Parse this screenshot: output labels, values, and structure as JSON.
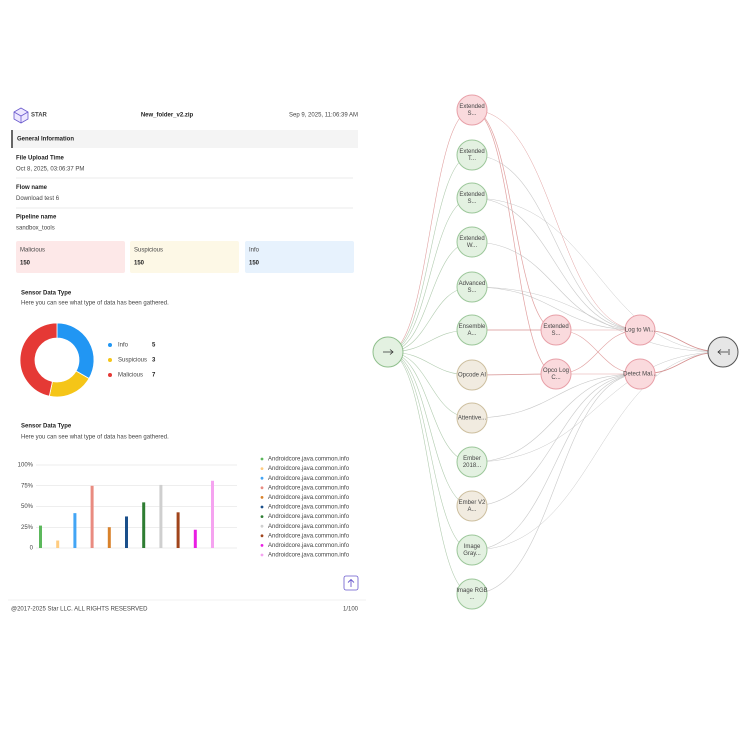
{
  "header": {
    "logo": "STAR",
    "file_name": "New_folder_v2.zip",
    "date": "Sep 9, 2025, 11:06:39 AM"
  },
  "general_information": {
    "title": "General Information",
    "fields": [
      {
        "label": "File Upload Time",
        "value": "Oct 8, 2025, 03:06:37 PM"
      },
      {
        "label": "Flow name",
        "value": "Download test 6"
      },
      {
        "label": "Pipeline name",
        "value": "sandbox_tools"
      }
    ]
  },
  "summary_cards": [
    {
      "label": "Malicious",
      "value": 150,
      "color": "#e53935",
      "background": "#fde8e8"
    },
    {
      "label": "Suspicious",
      "value": 150,
      "color": "#f2b705",
      "background": "#fdf8e6"
    },
    {
      "label": "Info",
      "value": 150,
      "color": "#2196f3",
      "background": "#e7f2fd"
    }
  ],
  "donut_chart": {
    "type": "donut",
    "title": "Sensor Data Type",
    "subtitle": "Here you can see what type of data has been gathered.",
    "series": [
      {
        "name": "Info",
        "value": 5,
        "color": "#2196f3"
      },
      {
        "name": "Suspicious",
        "value": 3,
        "color": "#f5c518"
      },
      {
        "name": "Malicious",
        "value": 7,
        "color": "#e53935"
      }
    ]
  },
  "bar_chart": {
    "type": "bar",
    "title": "Sensor Data Type",
    "subtitle": "Here you can see what type of data has been gathered.",
    "ylim": [
      0,
      100
    ],
    "yticks": [
      0,
      {
        "value": 25,
        "label": "25%"
      },
      {
        "value": 50,
        "label": "50%"
      },
      {
        "value": 75,
        "label": "75%"
      },
      {
        "value": 100,
        "label": "100%"
      }
    ],
    "grid": true,
    "series": [
      {
        "name": "Androidcore.java.common.info",
        "color": "#5cb85c",
        "value": 27
      },
      {
        "name": "Androidcore.java.common.info",
        "color": "#ffcc80",
        "value": 9
      },
      {
        "name": "Androidcore.java.common.info",
        "color": "#42a5f5",
        "value": 42
      },
      {
        "name": "Androidcore.java.common.info",
        "color": "#e98b80",
        "value": 75
      },
      {
        "name": "Androidcore.java.common.info",
        "color": "#d9822b",
        "value": 25
      },
      {
        "name": "Androidcore.java.common.info",
        "color": "#1a4f8a",
        "value": 38
      },
      {
        "name": "Androidcore.java.common.info",
        "color": "#2e7d32",
        "value": 55
      },
      {
        "name": "Androidcore.java.common.info",
        "color": "#cfcfcf",
        "value": 76
      },
      {
        "name": "Androidcore.java.common.info",
        "color": "#a0441b",
        "value": 43
      },
      {
        "name": "Androidcore.java.common.info",
        "color": "#e91ee3",
        "value": 22
      },
      {
        "name": "Androidcore.java.common.info",
        "color": "#f5a3f0",
        "value": 81
      }
    ]
  },
  "footer": {
    "copyright": "@2017-2025 Star  LLC. ALL RIGHTS RESESRVED",
    "page": "1/100"
  },
  "flow": {
    "nodes": [
      {
        "label": [
          "Extended",
          "S..."
        ],
        "fill": "#fadadd",
        "stroke": "#e8a0a8",
        "text_color": "#b23a48"
      },
      {
        "label": [
          "Extended",
          "T..."
        ],
        "fill": "#e3f1e1",
        "stroke": "#9cc79a",
        "text_color": "#2e6b2e"
      },
      {
        "label": [
          "Extended",
          "S..."
        ],
        "fill": "#e3f1e1",
        "stroke": "#9cc79a",
        "text_color": "#2e6b2e"
      },
      {
        "label": [
          "Extended",
          "W..."
        ],
        "fill": "#e3f1e1",
        "stroke": "#9cc79a",
        "text_color": "#2e6b2e"
      },
      {
        "label": [
          "Advanced",
          "S..."
        ],
        "fill": "#e3f1e1",
        "stroke": "#9cc79a",
        "text_color": "#2e6b2e"
      },
      {
        "label": [
          "Ensemble",
          "A..."
        ],
        "fill": "#e3f1e1",
        "stroke": "#9cc79a",
        "text_color": "#2e6b2e"
      },
      {
        "label": [
          "Opcode AI"
        ],
        "fill": "#f1ebe0",
        "stroke": "#cdbf9f",
        "text_color": "#8a6d3b"
      },
      {
        "label": [
          "Attentive..."
        ],
        "fill": "#f1ebe0",
        "stroke": "#cdbf9f",
        "text_color": "#8a6d3b"
      },
      {
        "label": [
          "Ember",
          "2018..."
        ],
        "fill": "#e3f1e1",
        "stroke": "#9cc79a",
        "text_color": "#2e6b2e"
      },
      {
        "label": [
          "Ember V2",
          "A..."
        ],
        "fill": "#f1ebe0",
        "stroke": "#cdbf9f",
        "text_color": "#8a6d3b"
      },
      {
        "label": [
          "Image",
          "Gray..."
        ],
        "fill": "#e3f1e1",
        "stroke": "#9cc79a",
        "text_color": "#2e6b2e"
      },
      {
        "label": [
          "Image RGB",
          "..."
        ],
        "fill": "#e3f1e1",
        "stroke": "#9cc79a",
        "text_color": "#2e6b2e"
      },
      {
        "label": [
          "Extended",
          "S..."
        ],
        "fill": "#fadadd",
        "stroke": "#e8a0a8",
        "text_color": "#b23a48"
      },
      {
        "label": [
          "Opco Log",
          "C..."
        ],
        "fill": "#fadadd",
        "stroke": "#e8a0a8",
        "text_color": "#b23a48"
      },
      {
        "label": [
          "Log to Wi..."
        ],
        "fill": "#fadadd",
        "stroke": "#e8a0a8",
        "text_color": "#b23a48"
      },
      {
        "label": [
          "Detect Mal..."
        ],
        "fill": "#fadadd",
        "stroke": "#e8a0a8",
        "text_color": "#b23a48"
      }
    ]
  }
}
